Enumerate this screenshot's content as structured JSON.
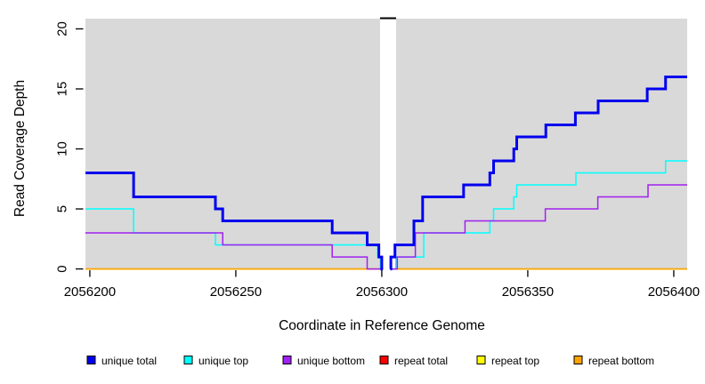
{
  "chart_data": {
    "type": "line",
    "step_style": "post",
    "title": "",
    "xlabel": "Coordinate in Reference Genome",
    "ylabel": "Read Coverage Depth",
    "xlim": [
      2056198.5,
      2056404.6
    ],
    "ylim": [
      -0.07,
      20.85
    ],
    "x_ticks": [
      2056200,
      2056250,
      2056300,
      2056350,
      2056400
    ],
    "y_ticks": [
      0,
      5,
      10,
      15,
      20
    ],
    "grid": "off",
    "panel_background": "#d9d9d9",
    "page_background": "#ffffff",
    "gap_mask": {
      "x_start": 2056299.4,
      "x_end": 2056304.9,
      "data_gap_start": 2056300.4,
      "data_gap_end": 2056302.9,
      "fill": "#ffffff",
      "top_edge_color": "#000000"
    },
    "series": [
      {
        "name": "unique_total",
        "label": "unique total",
        "color": "#0000ee",
        "line_width": 3,
        "draw_order": 6,
        "segments": [
          [
            [
              2056198.5,
              8
            ],
            [
              2056215,
              6
            ],
            [
              2056243,
              5
            ],
            [
              2056245.5,
              4
            ],
            [
              2056283,
              3
            ],
            [
              2056295,
              2
            ],
            [
              2056299,
              1
            ],
            [
              2056300,
              0
            ],
            [
              2056300.4,
              0
            ]
          ],
          [
            [
              2056302.9,
              0
            ],
            [
              2056303.1,
              1
            ],
            [
              2056304.5,
              2
            ],
            [
              2056311,
              4
            ],
            [
              2056314,
              6
            ],
            [
              2056328,
              7
            ],
            [
              2056337,
              8
            ],
            [
              2056338.3,
              9
            ],
            [
              2056345.2,
              10
            ],
            [
              2056346.2,
              11
            ],
            [
              2056356.2,
              12
            ],
            [
              2056366.3,
              13
            ],
            [
              2056374.1,
              14
            ],
            [
              2056390.9,
              15
            ],
            [
              2056397.2,
              16
            ],
            [
              2056404.6,
              16
            ]
          ]
        ]
      },
      {
        "name": "unique_top",
        "label": "unique top",
        "color": "#00ffff",
        "line_width": 1.5,
        "draw_order": 4,
        "segments": [
          [
            [
              2056198.5,
              5
            ],
            [
              2056215,
              3
            ],
            [
              2056243,
              2
            ],
            [
              2056298.6,
              1
            ],
            [
              2056299.5,
              0
            ],
            [
              2056300.4,
              0
            ]
          ],
          [
            [
              2056302.9,
              0
            ],
            [
              2056304.8,
              1
            ],
            [
              2056314.4,
              3
            ],
            [
              2056337,
              4
            ],
            [
              2056338.3,
              5
            ],
            [
              2056345.2,
              6
            ],
            [
              2056346.2,
              7
            ],
            [
              2056366.5,
              8
            ],
            [
              2056397.2,
              9
            ],
            [
              2056404.6,
              9
            ]
          ]
        ]
      },
      {
        "name": "unique_bottom",
        "label": "unique bottom",
        "color": "#a020f0",
        "line_width": 1.5,
        "draw_order": 5,
        "segments": [
          [
            [
              2056198.5,
              3
            ],
            [
              2056245.5,
              2
            ],
            [
              2056283,
              1
            ],
            [
              2056295,
              0
            ],
            [
              2056300.4,
              0
            ]
          ],
          [
            [
              2056302.9,
              0
            ],
            [
              2056305.3,
              1
            ],
            [
              2056311.5,
              3
            ],
            [
              2056328.5,
              4
            ],
            [
              2056356,
              5
            ],
            [
              2056374,
              6
            ],
            [
              2056391.2,
              7
            ],
            [
              2056404.6,
              7
            ]
          ]
        ]
      },
      {
        "name": "repeat_total",
        "label": "repeat total",
        "color": "#ff0000",
        "line_width": 1.5,
        "draw_order": 1,
        "segments": [
          [
            [
              2056198.5,
              0
            ],
            [
              2056300.4,
              0
            ]
          ],
          [
            [
              2056302.9,
              0
            ],
            [
              2056404.6,
              0
            ]
          ]
        ]
      },
      {
        "name": "repeat_top",
        "label": "repeat top",
        "color": "#ffff00",
        "line_width": 1.5,
        "draw_order": 2,
        "segments": [
          [
            [
              2056198.5,
              0
            ],
            [
              2056300.4,
              0
            ]
          ],
          [
            [
              2056302.9,
              0
            ],
            [
              2056404.6,
              0
            ]
          ]
        ]
      },
      {
        "name": "repeat_bottom",
        "label": "repeat bottom",
        "color": "#ffa500",
        "line_width": 1.5,
        "draw_order": 3,
        "segments": [
          [
            [
              2056198.5,
              0
            ],
            [
              2056300.4,
              0
            ]
          ],
          [
            [
              2056302.9,
              0
            ],
            [
              2056404.6,
              0
            ]
          ]
        ]
      }
    ],
    "legend": {
      "position": "bottom",
      "items": [
        "unique total",
        "unique top",
        "unique bottom",
        "repeat total",
        "repeat top",
        "repeat bottom"
      ]
    }
  }
}
